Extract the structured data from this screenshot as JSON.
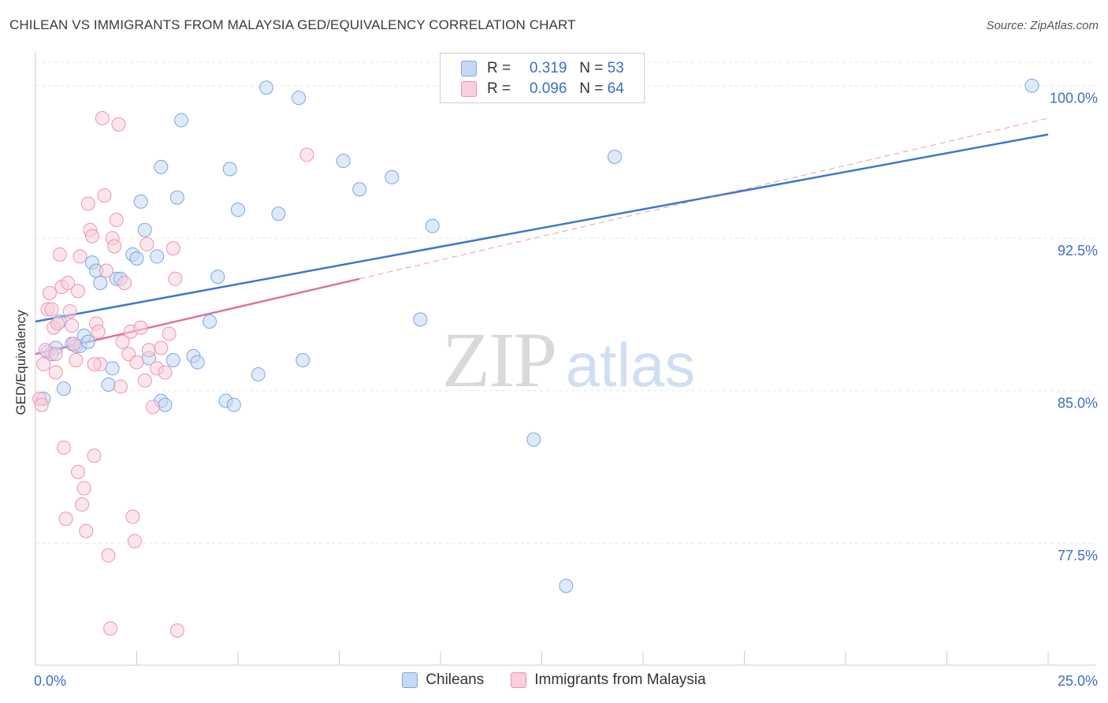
{
  "title": "CHILEAN VS IMMIGRANTS FROM MALAYSIA GED/EQUIVALENCY CORRELATION CHART",
  "source": "Source: ZipAtlas.com",
  "watermark": {
    "zip": "ZIP",
    "atlas": "atlas"
  },
  "legend_top": [
    {
      "r_label": "R =",
      "r_value": "0.319",
      "n_label": "N =",
      "n_value": "53",
      "color": "#a8c6ef"
    },
    {
      "r_label": "R =",
      "r_value": "0.096",
      "n_label": "N =",
      "n_value": "64",
      "color": "#f4b8ca"
    }
  ],
  "legend_bottom": [
    {
      "label": "Chileans",
      "color": "#a8c6ef"
    },
    {
      "label": "Immigrants from Malaysia",
      "color": "#f4b8ca"
    }
  ],
  "chart_data": {
    "type": "scatter",
    "title": "CHILEAN VS IMMIGRANTS FROM MALAYSIA GED/EQUIVALENCY CORRELATION CHART",
    "xlabel": "",
    "ylabel": "GED/Equivalency",
    "xlim": [
      0,
      25
    ],
    "ylim": [
      71.5,
      101.5
    ],
    "x_tick_labels": [
      "0.0%",
      "25.0%"
    ],
    "y_ticks": [
      77.5,
      85.0,
      92.5,
      100.0
    ],
    "y_tick_labels": [
      "77.5%",
      "85.0%",
      "92.5%",
      "100.0%"
    ],
    "grid": true,
    "colors": {
      "chileans_fill": "#c5d9f4",
      "chileans_stroke": "#7aa6e0",
      "chileans_line": "#3b78d0",
      "malaysia_fill": "#f9cfdc",
      "malaysia_stroke": "#ec93b0",
      "malaysia_line": "#e0709a"
    },
    "series": [
      {
        "name": "Chileans",
        "points": [
          [
            0.3,
            86.9
          ],
          [
            0.5,
            87.1
          ],
          [
            0.6,
            88.4
          ],
          [
            0.7,
            85.1
          ],
          [
            0.9,
            87.3
          ],
          [
            1.0,
            87.2
          ],
          [
            1.1,
            87.2
          ],
          [
            1.2,
            87.7
          ],
          [
            1.4,
            91.3
          ],
          [
            1.5,
            90.9
          ],
          [
            1.6,
            90.3
          ],
          [
            1.8,
            85.3
          ],
          [
            1.9,
            86.1
          ],
          [
            2.0,
            90.5
          ],
          [
            2.1,
            90.5
          ],
          [
            2.4,
            91.7
          ],
          [
            2.5,
            91.5
          ],
          [
            2.6,
            94.3
          ],
          [
            2.7,
            92.9
          ],
          [
            2.8,
            86.6
          ],
          [
            3.0,
            91.6
          ],
          [
            3.1,
            84.5
          ],
          [
            3.1,
            96.0
          ],
          [
            3.2,
            84.3
          ],
          [
            3.4,
            86.5
          ],
          [
            3.5,
            94.5
          ],
          [
            3.6,
            98.3
          ],
          [
            3.9,
            86.7
          ],
          [
            4.0,
            86.4
          ],
          [
            4.3,
            88.4
          ],
          [
            4.5,
            90.6
          ],
          [
            4.7,
            84.5
          ],
          [
            4.8,
            95.9
          ],
          [
            4.9,
            84.3
          ],
          [
            5.0,
            93.9
          ],
          [
            5.5,
            85.8
          ],
          [
            5.7,
            99.9
          ],
          [
            6.0,
            93.7
          ],
          [
            6.5,
            99.4
          ],
          [
            6.6,
            86.5
          ],
          [
            7.6,
            96.3
          ],
          [
            8.0,
            94.9
          ],
          [
            8.8,
            95.5
          ],
          [
            9.5,
            88.5
          ],
          [
            9.8,
            93.1
          ],
          [
            12.3,
            82.6
          ],
          [
            13.1,
            75.4
          ],
          [
            14.0,
            100.0
          ],
          [
            14.3,
            96.5
          ],
          [
            24.6,
            100.0
          ],
          [
            0.2,
            84.6
          ],
          [
            0.4,
            86.8
          ],
          [
            1.3,
            87.4
          ]
        ]
      },
      {
        "name": "Immigrants from Malaysia",
        "points": [
          [
            0.1,
            84.6
          ],
          [
            0.15,
            84.3
          ],
          [
            0.2,
            86.3
          ],
          [
            0.25,
            87.0
          ],
          [
            0.3,
            89.0
          ],
          [
            0.35,
            89.8
          ],
          [
            0.4,
            89.0
          ],
          [
            0.45,
            88.1
          ],
          [
            0.5,
            86.8
          ],
          [
            0.5,
            85.9
          ],
          [
            0.6,
            91.7
          ],
          [
            0.65,
            90.1
          ],
          [
            0.7,
            82.2
          ],
          [
            0.75,
            78.7
          ],
          [
            0.8,
            90.3
          ],
          [
            0.85,
            88.9
          ],
          [
            0.9,
            88.2
          ],
          [
            0.95,
            87.3
          ],
          [
            1.0,
            86.5
          ],
          [
            1.05,
            81.0
          ],
          [
            1.1,
            91.6
          ],
          [
            1.15,
            79.4
          ],
          [
            1.2,
            80.2
          ],
          [
            1.25,
            78.1
          ],
          [
            1.3,
            94.2
          ],
          [
            1.35,
            92.9
          ],
          [
            1.4,
            92.6
          ],
          [
            1.45,
            81.8
          ],
          [
            1.5,
            88.3
          ],
          [
            1.55,
            87.9
          ],
          [
            1.6,
            86.3
          ],
          [
            1.65,
            98.4
          ],
          [
            1.7,
            94.6
          ],
          [
            1.75,
            90.9
          ],
          [
            1.8,
            76.9
          ],
          [
            1.85,
            73.3
          ],
          [
            1.9,
            92.5
          ],
          [
            1.95,
            92.1
          ],
          [
            2.0,
            93.4
          ],
          [
            2.05,
            98.1
          ],
          [
            2.1,
            85.2
          ],
          [
            2.15,
            87.4
          ],
          [
            2.2,
            90.3
          ],
          [
            2.3,
            86.8
          ],
          [
            2.35,
            87.9
          ],
          [
            2.4,
            78.8
          ],
          [
            2.45,
            77.6
          ],
          [
            2.5,
            86.4
          ],
          [
            2.6,
            88.1
          ],
          [
            2.7,
            85.5
          ],
          [
            2.75,
            92.2
          ],
          [
            2.8,
            87.0
          ],
          [
            2.9,
            84.2
          ],
          [
            3.0,
            86.1
          ],
          [
            3.1,
            87.1
          ],
          [
            3.2,
            85.9
          ],
          [
            3.3,
            87.8
          ],
          [
            3.4,
            92.0
          ],
          [
            3.45,
            90.5
          ],
          [
            3.5,
            73.2
          ],
          [
            1.05,
            89.9
          ],
          [
            0.55,
            88.3
          ],
          [
            1.45,
            86.3
          ],
          [
            6.7,
            96.6
          ]
        ]
      }
    ],
    "trendlines": [
      {
        "name": "Chileans",
        "x": [
          0,
          25
        ],
        "y": [
          88.4,
          97.6
        ],
        "style": "solid"
      },
      {
        "name": "Immigrants from Malaysia",
        "x": [
          0,
          8.0
        ],
        "y": [
          86.8,
          90.5
        ],
        "style": "solid"
      },
      {
        "name": "Immigrants from Malaysia",
        "x": [
          8.0,
          25
        ],
        "y": [
          90.5,
          98.4
        ],
        "style": "dashed"
      }
    ]
  }
}
